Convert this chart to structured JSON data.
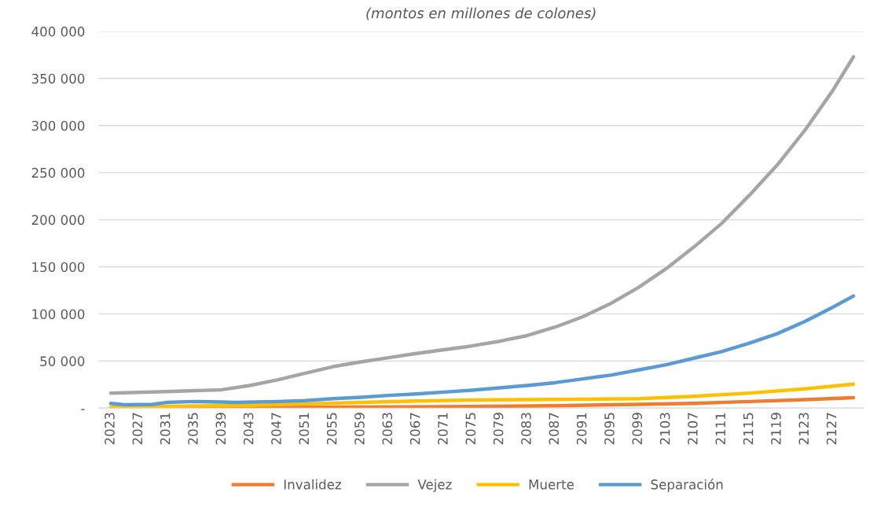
{
  "chart_data": {
    "type": "line",
    "title": "(montos en millones de colones)",
    "xlim": [
      2021.2,
      2131.5
    ],
    "xticks": [
      2023,
      2027,
      2031,
      2035,
      2039,
      2043,
      2047,
      2051,
      2055,
      2059,
      2063,
      2067,
      2071,
      2075,
      2079,
      2083,
      2087,
      2091,
      2095,
      2099,
      2103,
      2107,
      2111,
      2115,
      2119,
      2123,
      2127
    ],
    "ylim": [
      0,
      400000
    ],
    "yticks": [
      {
        "value": 0,
        "label": "-"
      },
      {
        "value": 50000,
        "label": "50 000"
      },
      {
        "value": 100000,
        "label": "100 000"
      },
      {
        "value": 150000,
        "label": "150 000"
      },
      {
        "value": 200000,
        "label": "200 000"
      },
      {
        "value": 250000,
        "label": "250 000"
      },
      {
        "value": 300000,
        "label": "300 000"
      },
      {
        "value": 350000,
        "label": "350 000"
      },
      {
        "value": 400000,
        "label": "400 000"
      }
    ],
    "grid": "y",
    "legend": "bottom",
    "marker": "none",
    "line_style": "solid",
    "series": [
      {
        "name": "Invalidez",
        "color": "#ed7d31",
        "x": [
          2023,
          2043,
          2055,
          2071,
          2087,
          2099,
          2107,
          2115,
          2123,
          2130
        ],
        "values": [
          300,
          500,
          1000,
          1500,
          2500,
          4000,
          5000,
          7000,
          9000,
          11000
        ]
      },
      {
        "name": "Vejez",
        "color": "#a5a5a5",
        "x": [
          2023,
          2031,
          2039,
          2043,
          2047,
          2051,
          2055,
          2059,
          2063,
          2067,
          2071,
          2075,
          2079,
          2083,
          2087,
          2091,
          2095,
          2099,
          2103,
          2107,
          2111,
          2115,
          2119,
          2123,
          2127,
          2130
        ],
        "values": [
          15900,
          17500,
          19500,
          24000,
          30000,
          37000,
          44000,
          49000,
          53500,
          58000,
          62000,
          66000,
          71000,
          77000,
          86000,
          97000,
          111000,
          128000,
          148000,
          171000,
          196000,
          226000,
          258000,
          295000,
          337000,
          373000
        ]
      },
      {
        "name": "Muerte",
        "color": "#ffc000",
        "x": [
          2023,
          2031,
          2043,
          2051,
          2059,
          2067,
          2075,
          2083,
          2091,
          2099,
          2107,
          2115,
          2123,
          2130
        ],
        "values": [
          1000,
          2000,
          3000,
          4500,
          6000,
          7500,
          8500,
          9000,
          9500,
          10000,
          12500,
          16000,
          20500,
          25500
        ]
      },
      {
        "name": "Separación",
        "color": "#5b9bd5",
        "x": [
          2023,
          2025,
          2029,
          2031,
          2035,
          2039,
          2041,
          2047,
          2051,
          2055,
          2059,
          2063,
          2067,
          2071,
          2075,
          2079,
          2083,
          2087,
          2091,
          2095,
          2099,
          2103,
          2107,
          2111,
          2115,
          2119,
          2123,
          2127,
          2130
        ],
        "values": [
          5000,
          3500,
          4000,
          6000,
          7000,
          6500,
          6000,
          7000,
          8000,
          10000,
          11500,
          13500,
          15000,
          17000,
          19000,
          21500,
          24000,
          27000,
          31000,
          35000,
          40500,
          46000,
          53000,
          60000,
          69000,
          79000,
          92000,
          107000,
          119000
        ]
      }
    ]
  }
}
